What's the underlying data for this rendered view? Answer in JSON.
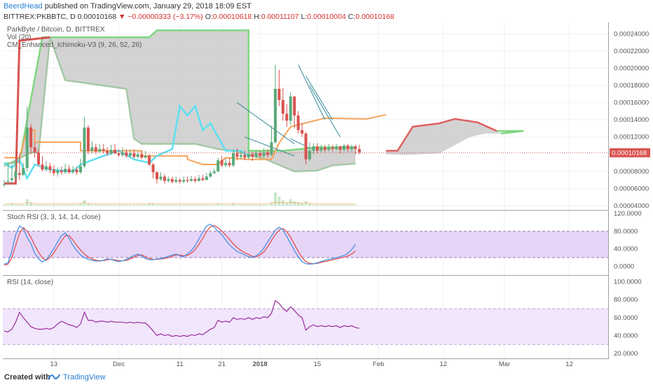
{
  "header": {
    "author": "BeerdHead",
    "published_text": "published on TradingView.com, January 29, 2018 18:09 EST",
    "symbol_line": "BITTREX:PKBBTC, D",
    "last": "0.00010168",
    "change": "−0.00000333 (−3.17%)",
    "open_label": "O:",
    "open": "0.00010618",
    "high_label": "H:",
    "high": "0.00011107",
    "low_label": "L:",
    "low": "0.00010004",
    "close_label": "C:",
    "close": "0.00010168"
  },
  "footer": {
    "created_with": "Created with",
    "brand": "TradingView"
  },
  "colors": {
    "up": "#5aaa7a",
    "down": "#d9534f",
    "cloud_fill": "#c8c8c8",
    "span_a": "#7fd77f",
    "span_b": "#b0b0b0",
    "kijun": "#f7a35c",
    "tenkan": "#5ce0f2",
    "future_cloud": "#e06060",
    "rsi_band": "#e6d5f7",
    "stoch_k": "#4a90e2",
    "stoch_d": "#e05050",
    "rsi_line": "#9c2b9c",
    "price_line": "#d9534f"
  },
  "chart_data": [
    {
      "type": "candlestick",
      "title": "ParkByte / Bitcoin, D, BITTREX",
      "indicators": [
        "Vol (20)",
        "CM_Enhanced_Ichimoku-V3 (9, 26, 52, 26)"
      ],
      "current_price_label": "0.00010168",
      "y_ticks": [
        "0.00024000",
        "0.00022000",
        "0.00020000",
        "0.00018000",
        "0.00016000",
        "0.00014000",
        "0.00012000",
        "0.00008000",
        "0.00006000",
        "0.00004000"
      ],
      "y_range": [
        4e-05,
        0.00025
      ],
      "candles": [
        [
          6.5e-05,
          6.5e-05,
          7e-05,
          6.2e-05
        ],
        [
          6.8e-05,
          6.9e-05,
          9e-05,
          6.4e-05
        ],
        [
          7e-05,
          7.2e-05,
          9e-05,
          6.6e-05
        ],
        [
          7.3e-05,
          8e-05,
          9.4e-05,
          6.9e-05
        ],
        [
          7.8e-05,
          7.6e-05,
          0.0001,
          7e-05
        ],
        [
          7.6e-05,
          8.4e-05,
          9e-05,
          7.5e-05
        ],
        [
          8.4e-05,
          0.000131,
          0.000155,
          8e-05
        ],
        [
          0.000131,
          0.000108,
          0.000135,
          0.0001
        ],
        [
          0.000108,
          0.000102,
          0.000114,
          9.6e-05
        ],
        [
          0.000102,
          8.8e-05,
          0.000106,
          8.6e-05
        ],
        [
          8.8e-05,
          8.2e-05,
          9.8e-05,
          8e-05
        ],
        [
          8.2e-05,
          8.6e-05,
          9.2e-05,
          8e-05
        ],
        [
          8.6e-05,
          8.2e-05,
          9e-05,
          7.8e-05
        ],
        [
          8.2e-05,
          7.8e-05,
          8.7e-05,
          7.5e-05
        ],
        [
          7.8e-05,
          8.1e-05,
          8.5e-05,
          7.4e-05
        ],
        [
          8.1e-05,
          7.9e-05,
          8.6e-05,
          7.6e-05
        ],
        [
          7.9e-05,
          8.3e-05,
          8.9e-05,
          7.7e-05
        ],
        [
          8.3e-05,
          7.9e-05,
          8.7e-05,
          7.7e-05
        ],
        [
          7.9e-05,
          8.2e-05,
          8.6e-05,
          7.7e-05
        ],
        [
          8.2e-05,
          7.9e-05,
          8.5e-05,
          7.6e-05
        ],
        [
          7.9e-05,
          8.6e-05,
          9.5e-05,
          7.7e-05
        ],
        [
          8.6e-05,
          0.000131,
          0.000143,
          8.4e-05
        ],
        [
          0.000131,
          0.000104,
          0.000134,
          0.0001
        ],
        [
          0.000104,
          0.000108,
          0.000115,
          0.000101
        ],
        [
          0.000108,
          0.000103,
          0.000112,
          0.0001
        ],
        [
          0.000103,
          0.000106,
          0.000112,
          0.000101
        ],
        [
          0.000106,
          0.000104,
          0.000112,
          0.000101
        ],
        [
          0.000104,
          0.000101,
          0.000108,
          9.8e-05
        ],
        [
          0.000101,
          0.000105,
          0.000111,
          9.9e-05
        ],
        [
          0.000105,
          0.000101,
          0.000112,
          0.0001
        ],
        [
          0.000101,
          9.9e-05,
          0.000106,
          9.7e-05
        ],
        [
          9.9e-05,
          0.000102,
          0.000108,
          9.7e-05
        ],
        [
          0.000102,
          9.8e-05,
          0.000106,
          9.6e-05
        ],
        [
          9.8e-05,
          0.000101,
          0.000106,
          9.6e-05
        ],
        [
          0.000101,
          9.7e-05,
          0.000106,
          9.5e-05
        ],
        [
          9.7e-05,
          0.0001,
          0.000104,
          9.5e-05
        ],
        [
          0.0001,
          9.6e-05,
          0.000104,
          9.4e-05
        ],
        [
          9.6e-05,
          9.8e-05,
          0.000104,
          9.5e-05
        ],
        [
          9.8e-05,
          8.8e-05,
          0.0001,
          8.6e-05
        ],
        [
          8.8e-05,
          7.9e-05,
          9e-05,
          7.2e-05
        ],
        [
          7.9e-05,
          7.1e-05,
          8e-05,
          6.6e-05
        ],
        [
          7.1e-05,
          7.4e-05,
          7.9e-05,
          6.9e-05
        ],
        [
          7.4e-05,
          6.9e-05,
          7.7e-05,
          6.6e-05
        ],
        [
          6.9e-05,
          7.1e-05,
          7.4e-05,
          6.7e-05
        ],
        [
          7.1e-05,
          6.8e-05,
          7.4e-05,
          6.6e-05
        ],
        [
          6.8e-05,
          7e-05,
          7.4e-05,
          6.6e-05
        ],
        [
          7e-05,
          6.8e-05,
          7.2e-05,
          6.6e-05
        ],
        [
          6.8e-05,
          7e-05,
          7.4e-05,
          6.6e-05
        ],
        [
          7e-05,
          6.9e-05,
          7.4e-05,
          6.7e-05
        ],
        [
          6.9e-05,
          7.1e-05,
          7.5e-05,
          6.8e-05
        ],
        [
          7.1e-05,
          6.9e-05,
          7.4e-05,
          6.7e-05
        ],
        [
          6.9e-05,
          7.2e-05,
          7.6e-05,
          6.8e-05
        ],
        [
          7.2e-05,
          7e-05,
          7.6e-05,
          6.9e-05
        ],
        [
          7e-05,
          7.4e-05,
          7.8e-05,
          7e-05
        ],
        [
          7.4e-05,
          7.8e-05,
          8.1e-05,
          7.3e-05
        ],
        [
          7.8e-05,
          8e-05,
          8.3e-05,
          7.7e-05
        ],
        [
          8e-05,
          9.3e-05,
          9.6e-05,
          7.9e-05
        ],
        [
          9.3e-05,
          8.7e-05,
          9.8e-05,
          8.5e-05
        ],
        [
          8.7e-05,
          9e-05,
          9.5e-05,
          8.5e-05
        ],
        [
          9e-05,
          8.7e-05,
          9.6e-05,
          8.5e-05
        ],
        [
          8.7e-05,
          0.000101,
          0.000106,
          8.5e-05
        ],
        [
          0.000101,
          9.7e-05,
          0.000107,
          9.3e-05
        ],
        [
          9.7e-05,
          9.9e-05,
          0.000104,
          9.4e-05
        ],
        [
          9.9e-05,
          9.6e-05,
          0.000104,
          9.3e-05
        ],
        [
          9.6e-05,
          0.0001,
          0.000105,
          9.4e-05
        ],
        [
          0.0001,
          9.7e-05,
          0.000102,
          9.2e-05
        ],
        [
          9.7e-05,
          0.000101,
          0.000104,
          9.5e-05
        ],
        [
          0.000101,
          9.8e-05,
          0.000104,
          9.5e-05
        ],
        [
          9.8e-05,
          0.000102,
          0.000107,
          9.6e-05
        ],
        [
          0.000102,
          9.9e-05,
          0.000106,
          9.6e-05
        ],
        [
          9.9e-05,
          0.000114,
          0.000133,
          9.8e-05
        ],
        [
          0.000114,
          0.000176,
          0.000204,
          0.000112
        ],
        [
          0.000176,
          0.000163,
          0.000198,
          0.000156
        ],
        [
          0.000163,
          0.000147,
          0.000177,
          0.000139
        ],
        [
          0.000147,
          0.000139,
          0.000158,
          0.000132
        ],
        [
          0.000139,
          0.000167,
          0.000172,
          0.000134
        ],
        [
          0.000167,
          0.000145,
          0.000168,
          0.00013
        ],
        [
          0.000145,
          0.000128,
          0.00015,
          0.000124
        ],
        [
          0.000128,
          0.000124,
          0.000136,
          0.00012
        ],
        [
          0.000124,
          9.4e-05,
          0.000126,
          8.8e-05
        ],
        [
          9.4e-05,
          0.000104,
          0.000114,
          9.2e-05
        ],
        [
          0.000104,
          0.000109,
          0.000113,
          0.0001
        ],
        [
          0.000109,
          0.000104,
          0.000113,
          0.000101
        ],
        [
          0.000104,
          0.000108,
          0.000111,
          0.000102
        ],
        [
          0.000108,
          0.000105,
          0.000111,
          0.000102
        ],
        [
          0.000105,
          0.000108,
          0.000112,
          0.000103
        ],
        [
          0.000108,
          0.000106,
          0.000111,
          0.000103
        ],
        [
          0.000106,
          0.000109,
          0.000112,
          0.000104
        ],
        [
          0.000109,
          0.000105,
          0.00011,
          0.000101
        ],
        [
          0.000105,
          0.00011,
          0.000112,
          0.000103
        ],
        [
          0.00011,
          0.000106,
          0.000112,
          0.000102
        ],
        [
          0.000106,
          0.000109,
          0.000111,
          0.000102
        ],
        [
          0.000109,
          0.000106,
          0.000111,
          0.0001
        ],
        [
          0.000106,
          0.000102,
          0.000111,
          0.0001
        ]
      ]
    },
    {
      "type": "line",
      "title": "Stoch RSI (3, 3, 14, 14, close)",
      "y_ticks": [
        "120.0000",
        "80.0000",
        "40.0000",
        "0.0000"
      ],
      "y_range": [
        -15,
        125
      ],
      "band": [
        20,
        80
      ],
      "series": [
        {
          "values": [
            5,
            8,
            35,
            72,
            92,
            86,
            66,
            52,
            30,
            17,
            10,
            16,
            27,
            41,
            56,
            70,
            76,
            64,
            48,
            36,
            26,
            20,
            16,
            14,
            12,
            12,
            14,
            17,
            16,
            13,
            11,
            13,
            16,
            20,
            25,
            28,
            24,
            18,
            15,
            15,
            17,
            18,
            20,
            23,
            26,
            28,
            24,
            22,
            28,
            36,
            47,
            62,
            78,
            92,
            96,
            89,
            80,
            72,
            60,
            49,
            41,
            34,
            30,
            26,
            22,
            20,
            24,
            31,
            42,
            56,
            69,
            82,
            89,
            82,
            68,
            52,
            36,
            22,
            11,
            6,
            5,
            6,
            8,
            11,
            14,
            16,
            18,
            20,
            22,
            25,
            30,
            38,
            50
          ]
        },
        {
          "values": [
            3,
            5,
            20,
            48,
            75,
            88,
            80,
            66,
            48,
            32,
            19,
            14,
            20,
            31,
            45,
            58,
            70,
            70,
            60,
            48,
            37,
            28,
            21,
            17,
            14,
            13,
            13,
            15,
            16,
            15,
            13,
            13,
            14,
            17,
            21,
            25,
            26,
            22,
            18,
            16,
            16,
            17,
            18,
            20,
            23,
            26,
            26,
            24,
            25,
            30,
            38,
            50,
            64,
            79,
            90,
            93,
            88,
            80,
            71,
            61,
            51,
            43,
            36,
            31,
            27,
            23,
            22,
            26,
            33,
            45,
            59,
            72,
            83,
            86,
            79,
            66,
            50,
            34,
            20,
            11,
            7,
            6,
            7,
            9,
            11,
            13,
            15,
            17,
            19,
            21,
            24,
            28,
            35
          ]
        }
      ]
    },
    {
      "type": "line",
      "title": "RSI (14, close)",
      "y_ticks": [
        "100.0000",
        "80.0000",
        "60.0000",
        "40.0000",
        "20.0000"
      ],
      "y_range": [
        16,
        106
      ],
      "band": [
        30,
        70
      ],
      "series": [
        {
          "values": [
            45,
            44,
            47,
            55,
            66,
            60,
            55,
            50,
            48,
            47,
            47,
            48,
            47,
            49,
            53,
            56,
            54,
            52,
            51,
            49,
            53,
            66,
            57,
            57,
            55,
            56,
            56,
            55,
            56,
            55,
            55,
            55,
            54,
            55,
            54,
            55,
            54,
            54,
            50,
            45,
            40,
            42,
            40,
            41,
            39,
            40,
            39,
            40,
            39,
            41,
            40,
            42,
            41,
            44,
            47,
            49,
            57,
            55,
            56,
            55,
            60,
            58,
            59,
            58,
            60,
            58,
            60,
            59,
            61,
            60,
            65,
            79,
            76,
            70,
            67,
            72,
            68,
            63,
            60,
            46,
            50,
            52,
            50,
            51,
            50,
            51,
            50,
            51,
            49,
            51,
            50,
            51,
            49,
            48
          ]
        }
      ]
    },
    {
      "type": "axis",
      "x_tick_labels": [
        "13",
        "Dec",
        "11",
        "21",
        "2018",
        "15",
        "Feb",
        "12",
        "Mar",
        "12"
      ],
      "x_tick_bold": [
        false,
        false,
        false,
        false,
        true,
        false,
        false,
        false,
        false,
        false
      ],
      "x_tick_bar_index": [
        13,
        30,
        46,
        57,
        67,
        82,
        98,
        115,
        131,
        148
      ]
    }
  ]
}
